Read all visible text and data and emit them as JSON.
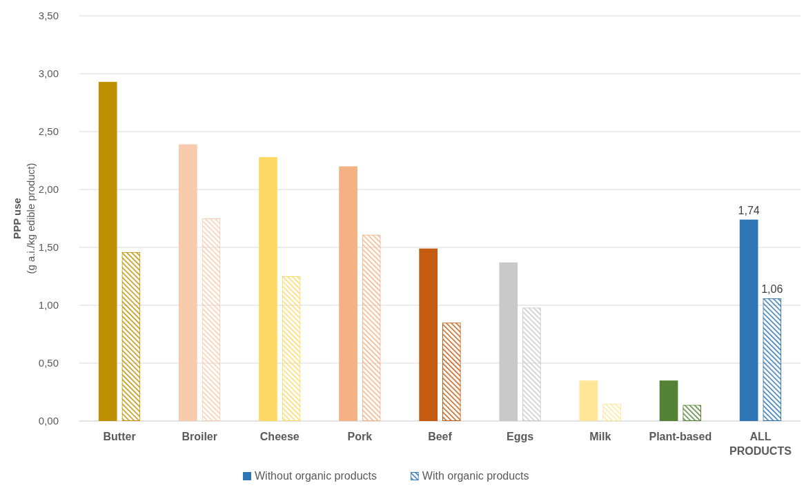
{
  "chart_data": {
    "type": "bar",
    "ylabel": "PPP use\n(g a.i./kg edible product)",
    "categories": [
      "Butter",
      "Broiler",
      "Cheese",
      "Pork",
      "Beef",
      "Eggs",
      "Milk",
      "Plant-based",
      "ALL PRODUCTS"
    ],
    "series": [
      {
        "name": "Without organic products",
        "color": "#2e75b6",
        "colors": [
          "#bf9000",
          "#f8cbad",
          "#ffd966",
          "#f4b183",
          "#c55a11",
          "#c9c9c9",
          "#ffe699",
          "#548235",
          "#2e75b6"
        ],
        "values": [
          2.93,
          2.39,
          2.28,
          2.2,
          1.49,
          1.37,
          0.35,
          0.35,
          1.74
        ],
        "value_labels": [
          null,
          null,
          null,
          null,
          null,
          null,
          null,
          null,
          "1,74"
        ]
      },
      {
        "name": "With organic products",
        "color": "#2e75b6",
        "colors": [
          "#bf9000",
          "#f8cbad",
          "#ffd966",
          "#f4b183",
          "#c55a11",
          "#c9c9c9",
          "#ffe699",
          "#548235",
          "#2e75b6"
        ],
        "values": [
          1.46,
          1.75,
          1.25,
          1.61,
          0.85,
          0.98,
          0.15,
          0.14,
          1.06
        ],
        "value_labels": [
          null,
          null,
          null,
          null,
          null,
          null,
          null,
          null,
          "1,06"
        ]
      }
    ],
    "ylim": [
      0,
      3.5
    ],
    "yticks": [
      {
        "value": 0,
        "label": "0,00"
      },
      {
        "value": 0.5,
        "label": "0,50"
      },
      {
        "value": 1,
        "label": "1,00"
      },
      {
        "value": 1.5,
        "label": "1,50"
      },
      {
        "value": 2,
        "label": "2,00"
      },
      {
        "value": 2.5,
        "label": "2,50"
      },
      {
        "value": 3,
        "label": "3,00"
      },
      {
        "value": 3.5,
        "label": "3,50"
      }
    ],
    "grid": "y",
    "legend": "bottom"
  }
}
